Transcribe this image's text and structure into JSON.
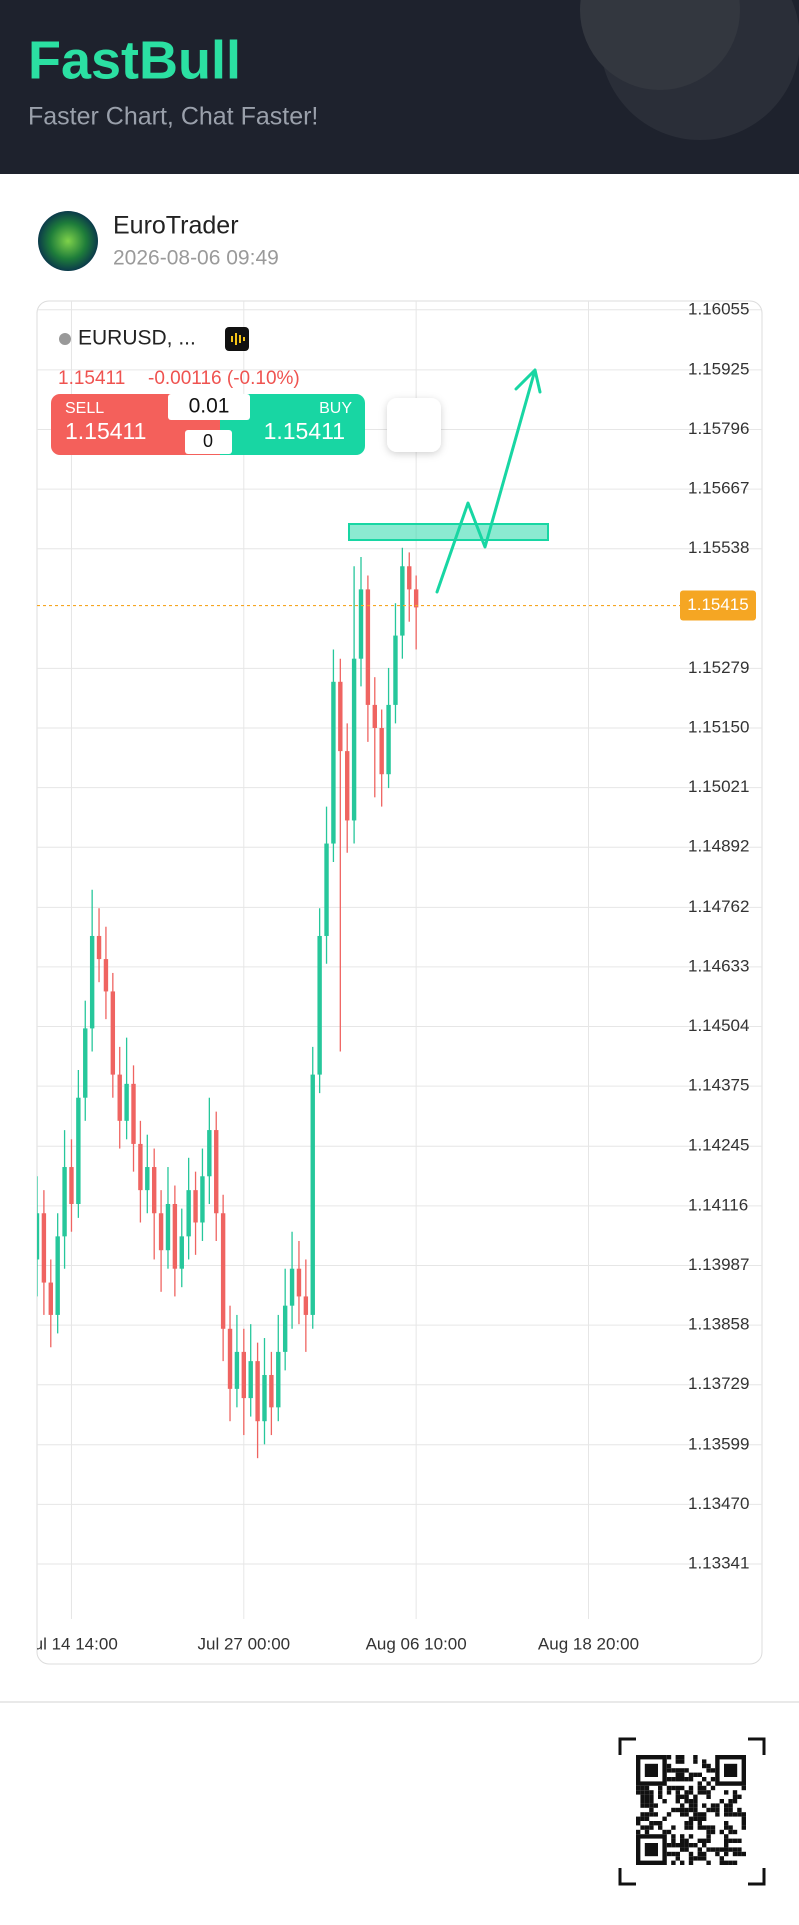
{
  "header": {
    "title": "FastBull",
    "subtitle": "Faster Chart, Chat Faster!"
  },
  "post": {
    "author": "EuroTrader",
    "time": "2026-08-06 09:49"
  },
  "quote": {
    "last": "1.15411",
    "change": "-0.00116 (-0.10%)",
    "sell_label": "SELL",
    "sell": "1.15411",
    "buy_label": "BUY",
    "buy": "1.15411",
    "lot": "0.01",
    "qty": "0"
  },
  "chart_data": {
    "type": "candlestick",
    "symbol": "EURUSD, ...",
    "up_color": "#26c79b",
    "down_color": "#ef6461",
    "xlim": [
      -5,
      89
    ],
    "ylim": [
      1.13222,
      1.16074
    ],
    "xticks": [
      {
        "value": 0,
        "label": "Jul 14 14:00"
      },
      {
        "value": 25,
        "label": "Jul 27 00:00"
      },
      {
        "value": 50,
        "label": "Aug 06 10:00"
      },
      {
        "value": 75,
        "label": "Aug 18 20:00"
      }
    ],
    "yticks": [
      1.16055,
      1.15925,
      1.15796,
      1.15667,
      1.15538,
      1.15279,
      {
        "value": 1.1515,
        "label": "1.15150"
      },
      1.15021,
      1.14892,
      1.14762,
      1.14633,
      1.14504,
      1.14375,
      1.14245,
      1.14116,
      1.13987,
      1.13858,
      1.13729,
      1.13599,
      {
        "value": 1.1347,
        "label": "1.13470"
      },
      1.13341
    ],
    "last_price": 1.15415,
    "grid": true,
    "x": [
      -5,
      -4,
      -3,
      -2,
      -1,
      0,
      1,
      2,
      3,
      4,
      5,
      6,
      7,
      8,
      9,
      10,
      11,
      12,
      13,
      14,
      15,
      16,
      17,
      18,
      19,
      20,
      21,
      22,
      23,
      24,
      25,
      26,
      27,
      28,
      29,
      30,
      31,
      32,
      33,
      34,
      35,
      36,
      37,
      38,
      39,
      40,
      41,
      42,
      43,
      44,
      45,
      46,
      47,
      48,
      49,
      50
    ],
    "values": [
      [
        1.14,
        1.1418,
        1.1392,
        1.141
      ],
      [
        1.141,
        1.1415,
        1.1388,
        1.1395
      ],
      [
        1.1395,
        1.14,
        1.1381,
        1.1388
      ],
      [
        1.1388,
        1.141,
        1.1384,
        1.1405
      ],
      [
        1.1405,
        1.1428,
        1.1398,
        1.142
      ],
      [
        1.142,
        1.1426,
        1.1406,
        1.1412
      ],
      [
        1.1412,
        1.1441,
        1.1409,
        1.1435
      ],
      [
        1.1435,
        1.1456,
        1.143,
        1.145
      ],
      [
        1.145,
        1.148,
        1.1445,
        1.147
      ],
      [
        1.147,
        1.1476,
        1.146,
        1.1465
      ],
      [
        1.1465,
        1.1472,
        1.1452,
        1.1458
      ],
      [
        1.1458,
        1.1462,
        1.1435,
        1.144
      ],
      [
        1.144,
        1.1446,
        1.1424,
        1.143
      ],
      [
        1.143,
        1.1448,
        1.1426,
        1.1438
      ],
      [
        1.1438,
        1.1442,
        1.1419,
        1.1425
      ],
      [
        1.1425,
        1.143,
        1.1408,
        1.1415
      ],
      [
        1.1415,
        1.1427,
        1.141,
        1.142
      ],
      [
        1.142,
        1.1424,
        1.14,
        1.141
      ],
      [
        1.141,
        1.1415,
        1.1393,
        1.1402
      ],
      [
        1.1402,
        1.142,
        1.1398,
        1.1412
      ],
      [
        1.1412,
        1.1416,
        1.1392,
        1.1398
      ],
      [
        1.1398,
        1.1411,
        1.1394,
        1.1405
      ],
      [
        1.1405,
        1.1422,
        1.14,
        1.1415
      ],
      [
        1.1415,
        1.1419,
        1.1401,
        1.1408
      ],
      [
        1.1408,
        1.1424,
        1.1404,
        1.1418
      ],
      [
        1.1418,
        1.1435,
        1.1412,
        1.1428
      ],
      [
        1.1428,
        1.1432,
        1.1404,
        1.141
      ],
      [
        1.141,
        1.1414,
        1.1378,
        1.1385
      ],
      [
        1.1385,
        1.139,
        1.1365,
        1.1372
      ],
      [
        1.1372,
        1.1388,
        1.1368,
        1.138
      ],
      [
        1.138,
        1.1385,
        1.1362,
        1.137
      ],
      [
        1.137,
        1.1386,
        1.1366,
        1.1378
      ],
      [
        1.1378,
        1.1382,
        1.1357,
        1.1365
      ],
      [
        1.1365,
        1.1383,
        1.136,
        1.1375
      ],
      [
        1.1375,
        1.138,
        1.1362,
        1.1368
      ],
      [
        1.1368,
        1.1388,
        1.1365,
        1.138
      ],
      [
        1.138,
        1.1398,
        1.1376,
        1.139
      ],
      [
        1.139,
        1.1406,
        1.1385,
        1.1398
      ],
      [
        1.1398,
        1.1404,
        1.1386,
        1.1392
      ],
      [
        1.1392,
        1.14,
        1.138,
        1.1388
      ],
      [
        1.1388,
        1.1446,
        1.1385,
        1.144
      ],
      [
        1.144,
        1.1476,
        1.1436,
        1.147
      ],
      [
        1.147,
        1.1498,
        1.1464,
        1.149
      ],
      [
        1.149,
        1.1532,
        1.1486,
        1.1525
      ],
      [
        1.1525,
        1.153,
        1.1445,
        1.151
      ],
      [
        1.151,
        1.1516,
        1.1488,
        1.1495
      ],
      [
        1.1495,
        1.155,
        1.149,
        1.153
      ],
      [
        1.153,
        1.1552,
        1.1524,
        1.1545
      ],
      [
        1.1545,
        1.1548,
        1.1512,
        1.152
      ],
      [
        1.152,
        1.1526,
        1.15,
        1.1515
      ],
      [
        1.1515,
        1.1519,
        1.1498,
        1.1505
      ],
      [
        1.1505,
        1.1528,
        1.1502,
        1.152
      ],
      [
        1.152,
        1.1542,
        1.1516,
        1.1535
      ],
      [
        1.1535,
        1.1554,
        1.153,
        1.155
      ],
      [
        1.155,
        1.1553,
        1.1538,
        1.1545
      ],
      [
        1.1545,
        1.1548,
        1.1532,
        1.15411
      ]
    ]
  }
}
